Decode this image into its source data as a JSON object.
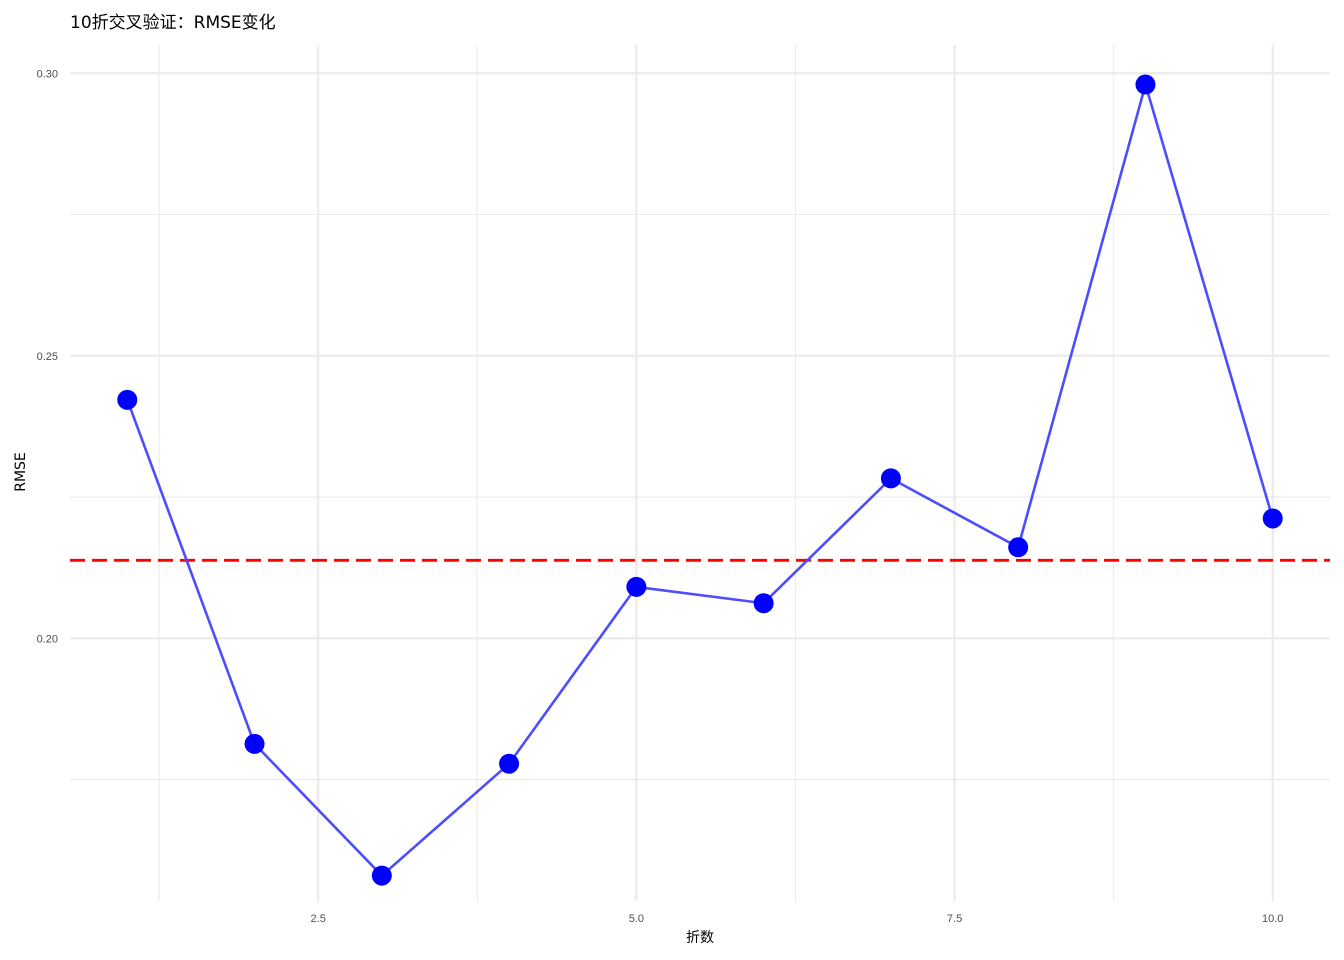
{
  "chart_data": {
    "type": "line",
    "title": "10折交叉验证：RMSE变化",
    "xlabel": "折数",
    "ylabel": "RMSE",
    "x": [
      1,
      2,
      3,
      4,
      5,
      6,
      7,
      8,
      9,
      10
    ],
    "series": [
      {
        "values": [
          0.2422,
          0.1813,
          0.158,
          0.1778,
          0.2091,
          0.2062,
          0.2283,
          0.2161,
          0.298,
          0.2212
        ]
      }
    ],
    "reference_line": {
      "y": 0.2138,
      "style": "dashed",
      "color": "#ff0000"
    },
    "xlim": [
      0.55,
      10.45
    ],
    "ylim": [
      0.1535,
      0.305
    ],
    "x_ticks": [
      2.5,
      5.0,
      7.5,
      10.0
    ],
    "x_tick_labels": [
      "2.5",
      "5.0",
      "7.5",
      "10.0"
    ],
    "y_ticks": [
      0.2,
      0.25,
      0.3
    ],
    "y_tick_labels": [
      "0.20",
      "0.25",
      "0.30"
    ],
    "grid": true,
    "legend": "none",
    "colors": {
      "line": "#4d4dff",
      "points": "#0000ff",
      "grid": "#ebebeb",
      "reference": "#ff0000"
    }
  }
}
